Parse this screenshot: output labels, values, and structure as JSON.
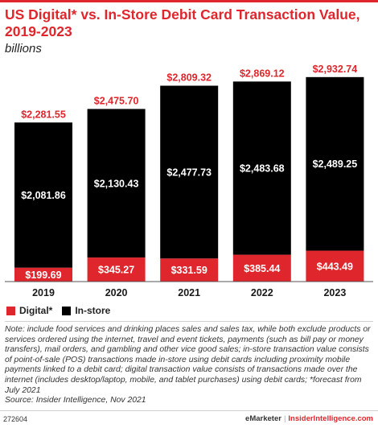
{
  "header": {
    "title": "US Digital* vs. In-Store Debit Card Transaction Value, 2019-2023",
    "subtitle": "billions"
  },
  "colors": {
    "digital": "#e0262d",
    "instore": "#000000",
    "total_label": "#e0262d"
  },
  "chart_data": {
    "type": "bar",
    "stacked": true,
    "categories": [
      "2019",
      "2020",
      "2021",
      "2022",
      "2023"
    ],
    "series": [
      {
        "name": "Digital*",
        "values": [
          199.69,
          345.27,
          331.59,
          385.44,
          443.49
        ],
        "labels": [
          "$199.69",
          "$345.27",
          "$331.59",
          "$385.44",
          "$443.49"
        ]
      },
      {
        "name": "In-store",
        "values": [
          2081.86,
          2130.43,
          2477.73,
          2483.68,
          2489.25
        ],
        "labels": [
          "$2,081.86",
          "$2,130.43",
          "$2,477.73",
          "$2,483.68",
          "$2,489.25"
        ]
      }
    ],
    "totals": [
      2281.55,
      2475.7,
      2809.32,
      2869.12,
      2932.74
    ],
    "total_labels": [
      "$2,281.55",
      "$2,475.70",
      "$2,809.32",
      "$2,869.12",
      "$2,932.74"
    ],
    "title": "US Digital* vs. In-Store Debit Card Transaction Value, 2019-2023",
    "subtitle": "billions",
    "xlabel": "",
    "ylabel": "",
    "ylim": [
      0,
      3000
    ],
    "grid": false,
    "legend": "bottom-left"
  },
  "legend": {
    "items": [
      {
        "label": "Digital*",
        "color": "#e0262d"
      },
      {
        "label": "In-store",
        "color": "#000000"
      }
    ]
  },
  "footer": {
    "note": "Note: include food services and drinking places sales and sales tax, while both exclude products or services ordered using the internet, travel and event tickets, payments (such as bill pay or money transfers), mail orders, and gambling and other vice good sales; in-store transaction value consists of point-of-sale (POS) transactions made in-store using debit cards including proximity mobile payments linked to a debit card; digital transaction value consists of transactions made over the internet (includes desktop/laptop, mobile, and tablet purchases) using debit cards; *forecast from July 2021",
    "source": "Source: Insider Intelligence, Nov 2021",
    "chart_id": "272604",
    "brand_left": "eMarketer",
    "brand_sep": "|",
    "brand_right": "InsiderIntelligence.com"
  }
}
